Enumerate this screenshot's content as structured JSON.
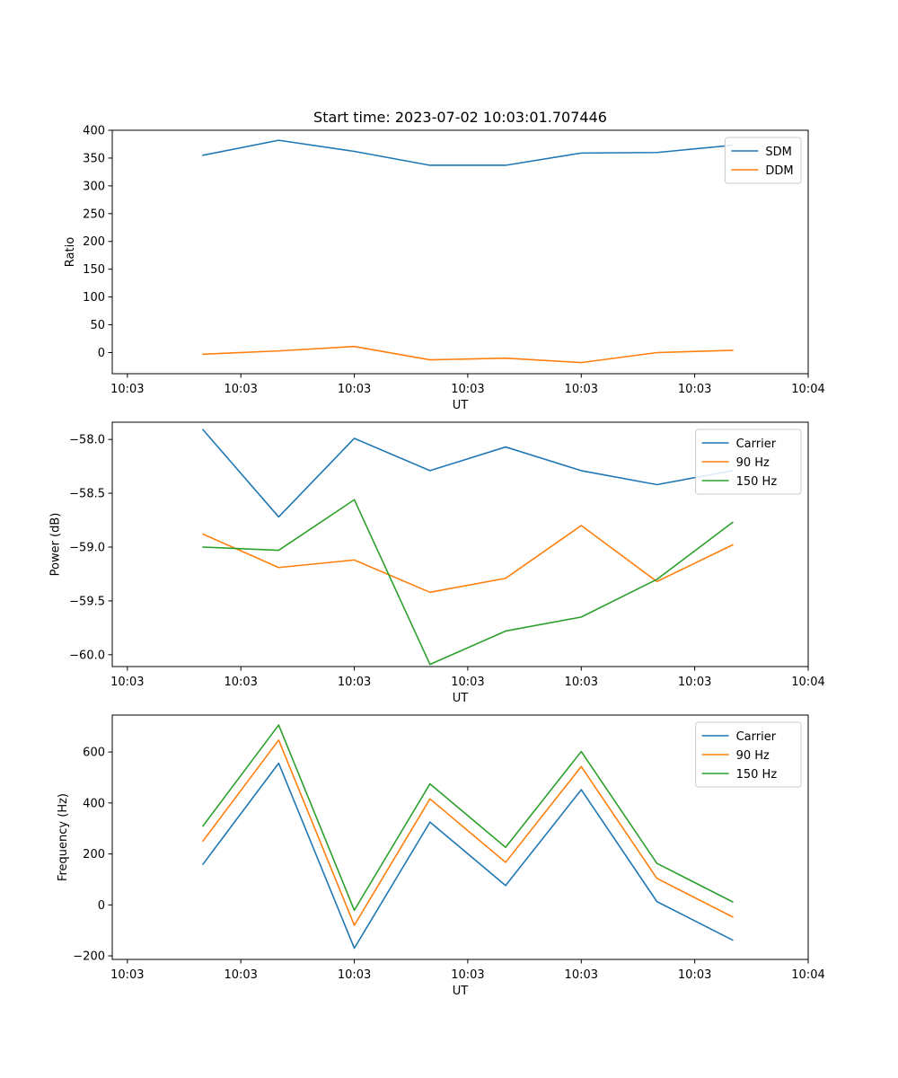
{
  "title": "Start time: 2023-07-02 10:03:01.707446",
  "colors": {
    "blue": "#1f77b4",
    "orange": "#ff7f0e",
    "green": "#2ca02c"
  },
  "chart_data": [
    {
      "type": "line",
      "xlabel": "UT",
      "ylabel": "Ratio",
      "x": [
        1.0,
        2.0,
        3.0,
        4.0,
        5.0,
        6.0,
        7.0,
        8.0
      ],
      "xlim": [
        -0.2,
        9.0
      ],
      "xticks": [
        0.0,
        1.5,
        3.0,
        4.5,
        6.0,
        7.5,
        9.0
      ],
      "xticklabels": [
        "10:03",
        "10:03",
        "10:03",
        "10:03",
        "10:03",
        "10:03",
        "10:04"
      ],
      "ylim": [
        -38,
        400
      ],
      "yticks": [
        0,
        50,
        100,
        150,
        200,
        250,
        300,
        350,
        400
      ],
      "yticklabels": [
        "0",
        "50",
        "100",
        "150",
        "200",
        "250",
        "300",
        "350",
        "400"
      ],
      "legend": "top-right",
      "series": [
        {
          "name": "SDM",
          "color": "#1f77b4",
          "values": [
            355,
            382,
            362,
            337,
            337,
            359,
            360,
            373
          ]
        },
        {
          "name": "DDM",
          "color": "#ff7f0e",
          "values": [
            -3,
            3,
            11,
            -13,
            -10,
            -18,
            0,
            4
          ]
        }
      ]
    },
    {
      "type": "line",
      "xlabel": "UT",
      "ylabel": "Power (dB)",
      "x": [
        1.0,
        2.0,
        3.0,
        4.0,
        5.0,
        6.0,
        7.0,
        8.0
      ],
      "xlim": [
        -0.2,
        9.0
      ],
      "xticks": [
        0.0,
        1.5,
        3.0,
        4.5,
        6.0,
        7.5,
        9.0
      ],
      "xticklabels": [
        "10:03",
        "10:03",
        "10:03",
        "10:03",
        "10:03",
        "10:03",
        "10:04"
      ],
      "ylim": [
        -60.11,
        -57.84
      ],
      "yticks": [
        -58.0,
        -58.5,
        -59.0,
        -59.5,
        -60.0
      ],
      "yticklabels": [
        "−58.0",
        "−58.5",
        "−59.0",
        "−59.5",
        "−60.0"
      ],
      "legend": "top-right",
      "series": [
        {
          "name": "Carrier",
          "color": "#1f77b4",
          "values": [
            -57.91,
            -58.72,
            -57.99,
            -58.29,
            -58.07,
            -58.29,
            -58.42,
            -58.29
          ]
        },
        {
          "name": "90 Hz",
          "color": "#ff7f0e",
          "values": [
            -58.88,
            -59.19,
            -59.12,
            -59.42,
            -59.29,
            -58.8,
            -59.32,
            -58.98
          ]
        },
        {
          "name": "150 Hz",
          "color": "#2ca02c",
          "values": [
            -59.0,
            -59.03,
            -58.56,
            -60.09,
            -59.78,
            -59.65,
            -59.3,
            -58.77
          ]
        }
      ]
    },
    {
      "type": "line",
      "xlabel": "UT",
      "ylabel": "Frequency (Hz)",
      "x": [
        1.0,
        2.0,
        3.0,
        4.0,
        5.0,
        6.0,
        7.0,
        8.0
      ],
      "xlim": [
        -0.2,
        9.0
      ],
      "xticks": [
        0.0,
        1.5,
        3.0,
        4.5,
        6.0,
        7.5,
        9.0
      ],
      "xticklabels": [
        "10:03",
        "10:03",
        "10:03",
        "10:03",
        "10:03",
        "10:03",
        "10:04"
      ],
      "ylim": [
        -214,
        745
      ],
      "yticks": [
        600,
        400,
        200,
        0,
        -200
      ],
      "yticklabels": [
        "600",
        "400",
        "200",
        "0",
        "−200"
      ],
      "legend": "top-right",
      "series": [
        {
          "name": "Carrier",
          "color": "#1f77b4",
          "values": [
            160,
            556,
            -170,
            325,
            76,
            452,
            13,
            -138
          ]
        },
        {
          "name": "90 Hz",
          "color": "#ff7f0e",
          "values": [
            251,
            647,
            -80,
            416,
            167,
            543,
            104,
            -47
          ]
        },
        {
          "name": "150 Hz",
          "color": "#2ca02c",
          "values": [
            310,
            706,
            -21,
            475,
            226,
            602,
            163,
            12
          ]
        }
      ]
    }
  ]
}
